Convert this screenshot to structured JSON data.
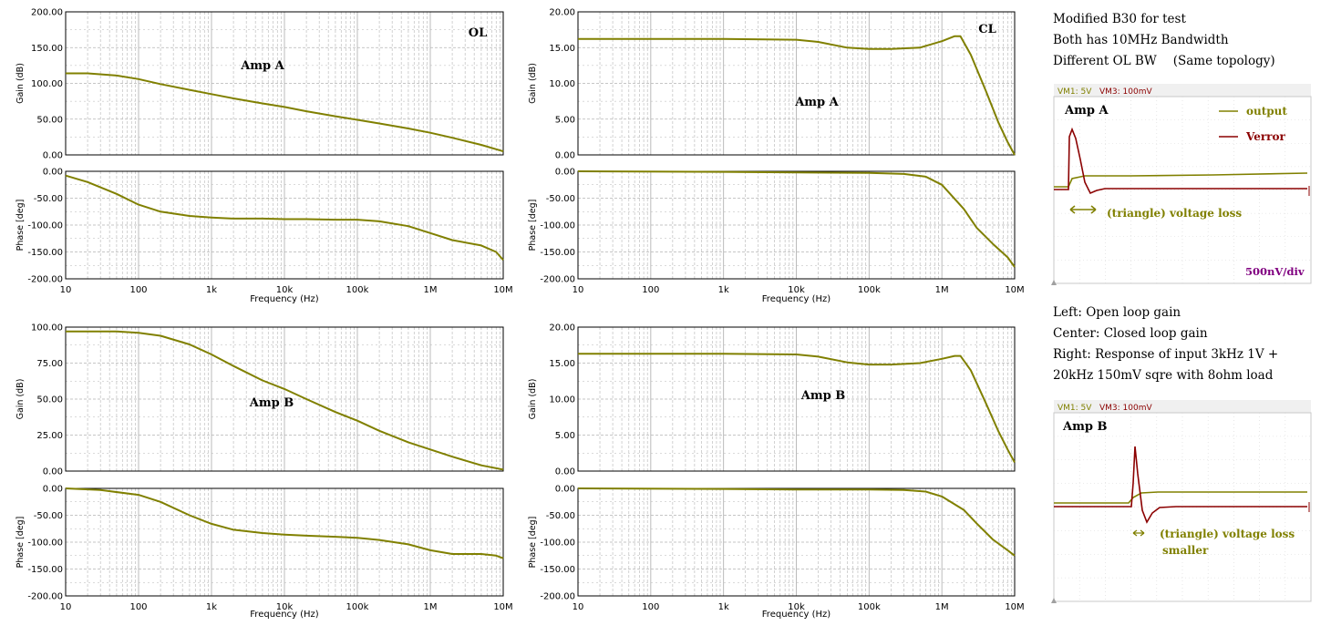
{
  "notes": {
    "line1": "Modified B30 for test",
    "line2": "Both has 10MHz Bandwidth",
    "line3a": "Different OL BW",
    "line3b": "(Same topology)",
    "line4": "Left: Open loop gain",
    "line5": "Center: Closed loop gain",
    "line6": "Right: Response of input 3kHz 1V +",
    "line7": "20kHz 150mV sqre with 8ohm load"
  },
  "colors": {
    "trace": "#808000",
    "verror": "#8b0000",
    "grid": "#b4b4b4",
    "axis": "#000000",
    "div_label": "#800080"
  },
  "freq_ticks": [
    "10",
    "100",
    "1k",
    "10k",
    "100k",
    "1M",
    "10M"
  ],
  "xlabel": "Frequency (Hz)",
  "chart_data": [
    {
      "id": "ol-a",
      "type": "line",
      "panel": "Open loop gain Amp A",
      "label": "Amp A",
      "corner_label": "OL",
      "gain": {
        "ylabel": "Gain (dB)",
        "ylim": [
          0,
          200
        ],
        "yticks": [
          "200.00",
          "150.00",
          "100.00",
          "50.00",
          "0.00"
        ],
        "points": [
          [
            10,
            114
          ],
          [
            20,
            114
          ],
          [
            50,
            111
          ],
          [
            100,
            106
          ],
          [
            200,
            99
          ],
          [
            500,
            91
          ],
          [
            1000,
            85
          ],
          [
            2000,
            79
          ],
          [
            5000,
            72
          ],
          [
            10000,
            67
          ],
          [
            20000,
            61
          ],
          [
            50000,
            54
          ],
          [
            100000,
            49
          ],
          [
            200000,
            44
          ],
          [
            500000,
            37
          ],
          [
            1000000,
            31
          ],
          [
            2000000,
            24
          ],
          [
            5000000,
            14
          ],
          [
            10000000,
            5
          ]
        ]
      },
      "phase": {
        "ylabel": "Phase [deg]",
        "ylim": [
          -200,
          0
        ],
        "yticks": [
          "0.00",
          "-50.00",
          "-100.00",
          "-150.00",
          "-200.00"
        ],
        "points": [
          [
            10,
            -8
          ],
          [
            20,
            -20
          ],
          [
            50,
            -42
          ],
          [
            100,
            -62
          ],
          [
            200,
            -75
          ],
          [
            500,
            -83
          ],
          [
            1000,
            -86
          ],
          [
            2000,
            -88
          ],
          [
            5000,
            -88
          ],
          [
            10000,
            -89
          ],
          [
            20000,
            -89
          ],
          [
            50000,
            -90
          ],
          [
            100000,
            -90
          ],
          [
            200000,
            -93
          ],
          [
            500000,
            -102
          ],
          [
            1000000,
            -115
          ],
          [
            2000000,
            -128
          ],
          [
            5000000,
            -138
          ],
          [
            8000000,
            -150
          ],
          [
            10000000,
            -165
          ]
        ]
      }
    },
    {
      "id": "cl-a",
      "type": "line",
      "panel": "Closed loop gain Amp A",
      "label": "Amp A",
      "corner_label": "CL",
      "gain": {
        "ylabel": "Gain (dB)",
        "ylim": [
          0,
          20
        ],
        "yticks": [
          "20.00",
          "15.00",
          "10.00",
          "5.00",
          "0.00"
        ],
        "points": [
          [
            10,
            16.2
          ],
          [
            100,
            16.2
          ],
          [
            1000,
            16.2
          ],
          [
            10000,
            16.1
          ],
          [
            20000,
            15.8
          ],
          [
            50000,
            15.0
          ],
          [
            100000,
            14.8
          ],
          [
            200000,
            14.8
          ],
          [
            500000,
            15.0
          ],
          [
            1000000,
            15.9
          ],
          [
            1500000,
            16.6
          ],
          [
            1800000,
            16.6
          ],
          [
            2500000,
            14.0
          ],
          [
            4000000,
            9.0
          ],
          [
            6000000,
            4.5
          ],
          [
            8000000,
            1.8
          ],
          [
            10000000,
            0.0
          ]
        ]
      },
      "phase": {
        "ylabel": "Phase [deg]",
        "ylim": [
          -200,
          0
        ],
        "yticks": [
          "0.00",
          "-50.00",
          "-100.00",
          "-150.00",
          "-200.00"
        ],
        "points": [
          [
            10,
            0
          ],
          [
            1000,
            -1
          ],
          [
            10000,
            -2
          ],
          [
            100000,
            -3
          ],
          [
            300000,
            -5
          ],
          [
            600000,
            -10
          ],
          [
            1000000,
            -25
          ],
          [
            2000000,
            -70
          ],
          [
            3000000,
            -105
          ],
          [
            5000000,
            -135
          ],
          [
            8000000,
            -160
          ],
          [
            10000000,
            -178
          ]
        ]
      }
    },
    {
      "id": "ol-b",
      "type": "line",
      "panel": "Open loop gain Amp B",
      "label": "Amp B",
      "gain": {
        "ylabel": "Gain (dB)",
        "ylim": [
          0,
          100
        ],
        "yticks": [
          "100.00",
          "75.00",
          "50.00",
          "25.00",
          "0.00"
        ],
        "points": [
          [
            10,
            97
          ],
          [
            50,
            97
          ],
          [
            100,
            96
          ],
          [
            200,
            94
          ],
          [
            500,
            88
          ],
          [
            1000,
            81
          ],
          [
            2000,
            73
          ],
          [
            5000,
            63
          ],
          [
            10000,
            57
          ],
          [
            20000,
            50
          ],
          [
            50000,
            41
          ],
          [
            100000,
            35
          ],
          [
            200000,
            28
          ],
          [
            500000,
            20
          ],
          [
            1000000,
            15
          ],
          [
            2000000,
            10
          ],
          [
            5000000,
            4
          ],
          [
            10000000,
            1
          ]
        ]
      },
      "phase": {
        "ylabel": "Phase [deg]",
        "ylim": [
          -200,
          0
        ],
        "yticks": [
          "0.00",
          "-50.00",
          "-100.00",
          "-150.00",
          "-200.00"
        ],
        "points": [
          [
            10,
            0
          ],
          [
            30,
            -3
          ],
          [
            100,
            -12
          ],
          [
            200,
            -25
          ],
          [
            500,
            -50
          ],
          [
            1000,
            -66
          ],
          [
            2000,
            -77
          ],
          [
            5000,
            -83
          ],
          [
            10000,
            -86
          ],
          [
            20000,
            -88
          ],
          [
            50000,
            -90
          ],
          [
            100000,
            -92
          ],
          [
            200000,
            -96
          ],
          [
            500000,
            -104
          ],
          [
            1000000,
            -115
          ],
          [
            2000000,
            -122
          ],
          [
            5000000,
            -122
          ],
          [
            8000000,
            -125
          ],
          [
            10000000,
            -130
          ]
        ]
      }
    },
    {
      "id": "cl-b",
      "type": "line",
      "panel": "Closed loop gain Amp B",
      "label": "Amp B",
      "gain": {
        "ylabel": "Gain (dB)",
        "ylim": [
          0,
          20
        ],
        "yticks": [
          "20.00",
          "15.00",
          "10.00",
          "5.00",
          "0.00"
        ],
        "points": [
          [
            10,
            16.3
          ],
          [
            100,
            16.3
          ],
          [
            1000,
            16.3
          ],
          [
            10000,
            16.2
          ],
          [
            20000,
            15.9
          ],
          [
            50000,
            15.1
          ],
          [
            100000,
            14.8
          ],
          [
            200000,
            14.8
          ],
          [
            500000,
            15.0
          ],
          [
            1000000,
            15.6
          ],
          [
            1500000,
            16.0
          ],
          [
            1800000,
            16.0
          ],
          [
            2500000,
            14.0
          ],
          [
            4000000,
            9.5
          ],
          [
            6000000,
            5.5
          ],
          [
            8000000,
            3.0
          ],
          [
            10000000,
            1.2
          ]
        ]
      },
      "phase": {
        "ylabel": "Phase [deg]",
        "ylim": [
          -200,
          0
        ],
        "yticks": [
          "0.00",
          "-50.00",
          "-100.00",
          "-150.00",
          "-200.00"
        ],
        "points": [
          [
            10,
            0
          ],
          [
            1000,
            -1
          ],
          [
            10000,
            -2
          ],
          [
            100000,
            -2
          ],
          [
            300000,
            -3
          ],
          [
            600000,
            -6
          ],
          [
            1000000,
            -15
          ],
          [
            2000000,
            -40
          ],
          [
            3000000,
            -65
          ],
          [
            5000000,
            -95
          ],
          [
            8000000,
            -115
          ],
          [
            10000000,
            -125
          ]
        ]
      }
    }
  ],
  "scopes": [
    {
      "id": "scope-a",
      "header": [
        "VM1: 5V",
        "VM3: 100mV"
      ],
      "label": "Amp A",
      "legend": [
        "output",
        "Verror"
      ],
      "annotation": "(triangle) voltage loss",
      "div_label": "500nV/div"
    },
    {
      "id": "scope-b",
      "header": [
        "VM1: 5V",
        "VM3: 100mV"
      ],
      "label": "Amp B",
      "annotation": "(triangle) voltage loss",
      "annotation2": "smaller"
    }
  ]
}
